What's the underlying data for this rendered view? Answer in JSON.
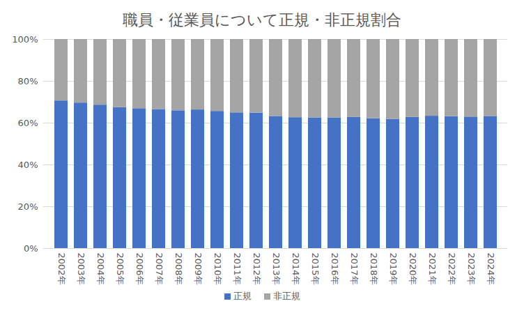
{
  "chart_data": {
    "type": "bar",
    "title": "職員・従業員について正規・非正規割合",
    "categories": [
      "2002年",
      "2003年",
      "2004年",
      "2005年",
      "2006年",
      "2007年",
      "2008年",
      "2009年",
      "2010年",
      "2011年",
      "2012年",
      "2013年",
      "2014年",
      "2015年",
      "2016年",
      "2017年",
      "2018年",
      "2019年",
      "2020年",
      "2021年",
      "2022年",
      "2023年",
      "2024年"
    ],
    "series": [
      {
        "name": "正規",
        "color": "#4472c4",
        "values": [
          70.6,
          69.6,
          68.6,
          67.4,
          66.9,
          66.5,
          65.9,
          66.3,
          65.6,
          64.9,
          64.8,
          63.2,
          62.6,
          62.5,
          62.5,
          62.7,
          62.1,
          61.7,
          62.8,
          63.3,
          63.1,
          62.9,
          63.2
        ]
      },
      {
        "name": "非正規",
        "color": "#a5a5a5",
        "values": [
          29.4,
          30.4,
          31.4,
          32.6,
          33.1,
          33.5,
          34.1,
          33.7,
          34.4,
          35.1,
          35.2,
          36.8,
          37.4,
          37.5,
          37.5,
          37.3,
          37.9,
          38.3,
          37.2,
          36.7,
          36.9,
          37.1,
          36.8
        ]
      }
    ],
    "ylim": [
      0,
      100
    ],
    "yticks": [
      {
        "value": 0,
        "label": "0%"
      },
      {
        "value": 20,
        "label": "20%"
      },
      {
        "value": 40,
        "label": "40%"
      },
      {
        "value": 60,
        "label": "60%"
      },
      {
        "value": 80,
        "label": "80%"
      },
      {
        "value": 100,
        "label": "100%"
      }
    ],
    "stacked": true,
    "grid": true,
    "legend": "bottom"
  }
}
